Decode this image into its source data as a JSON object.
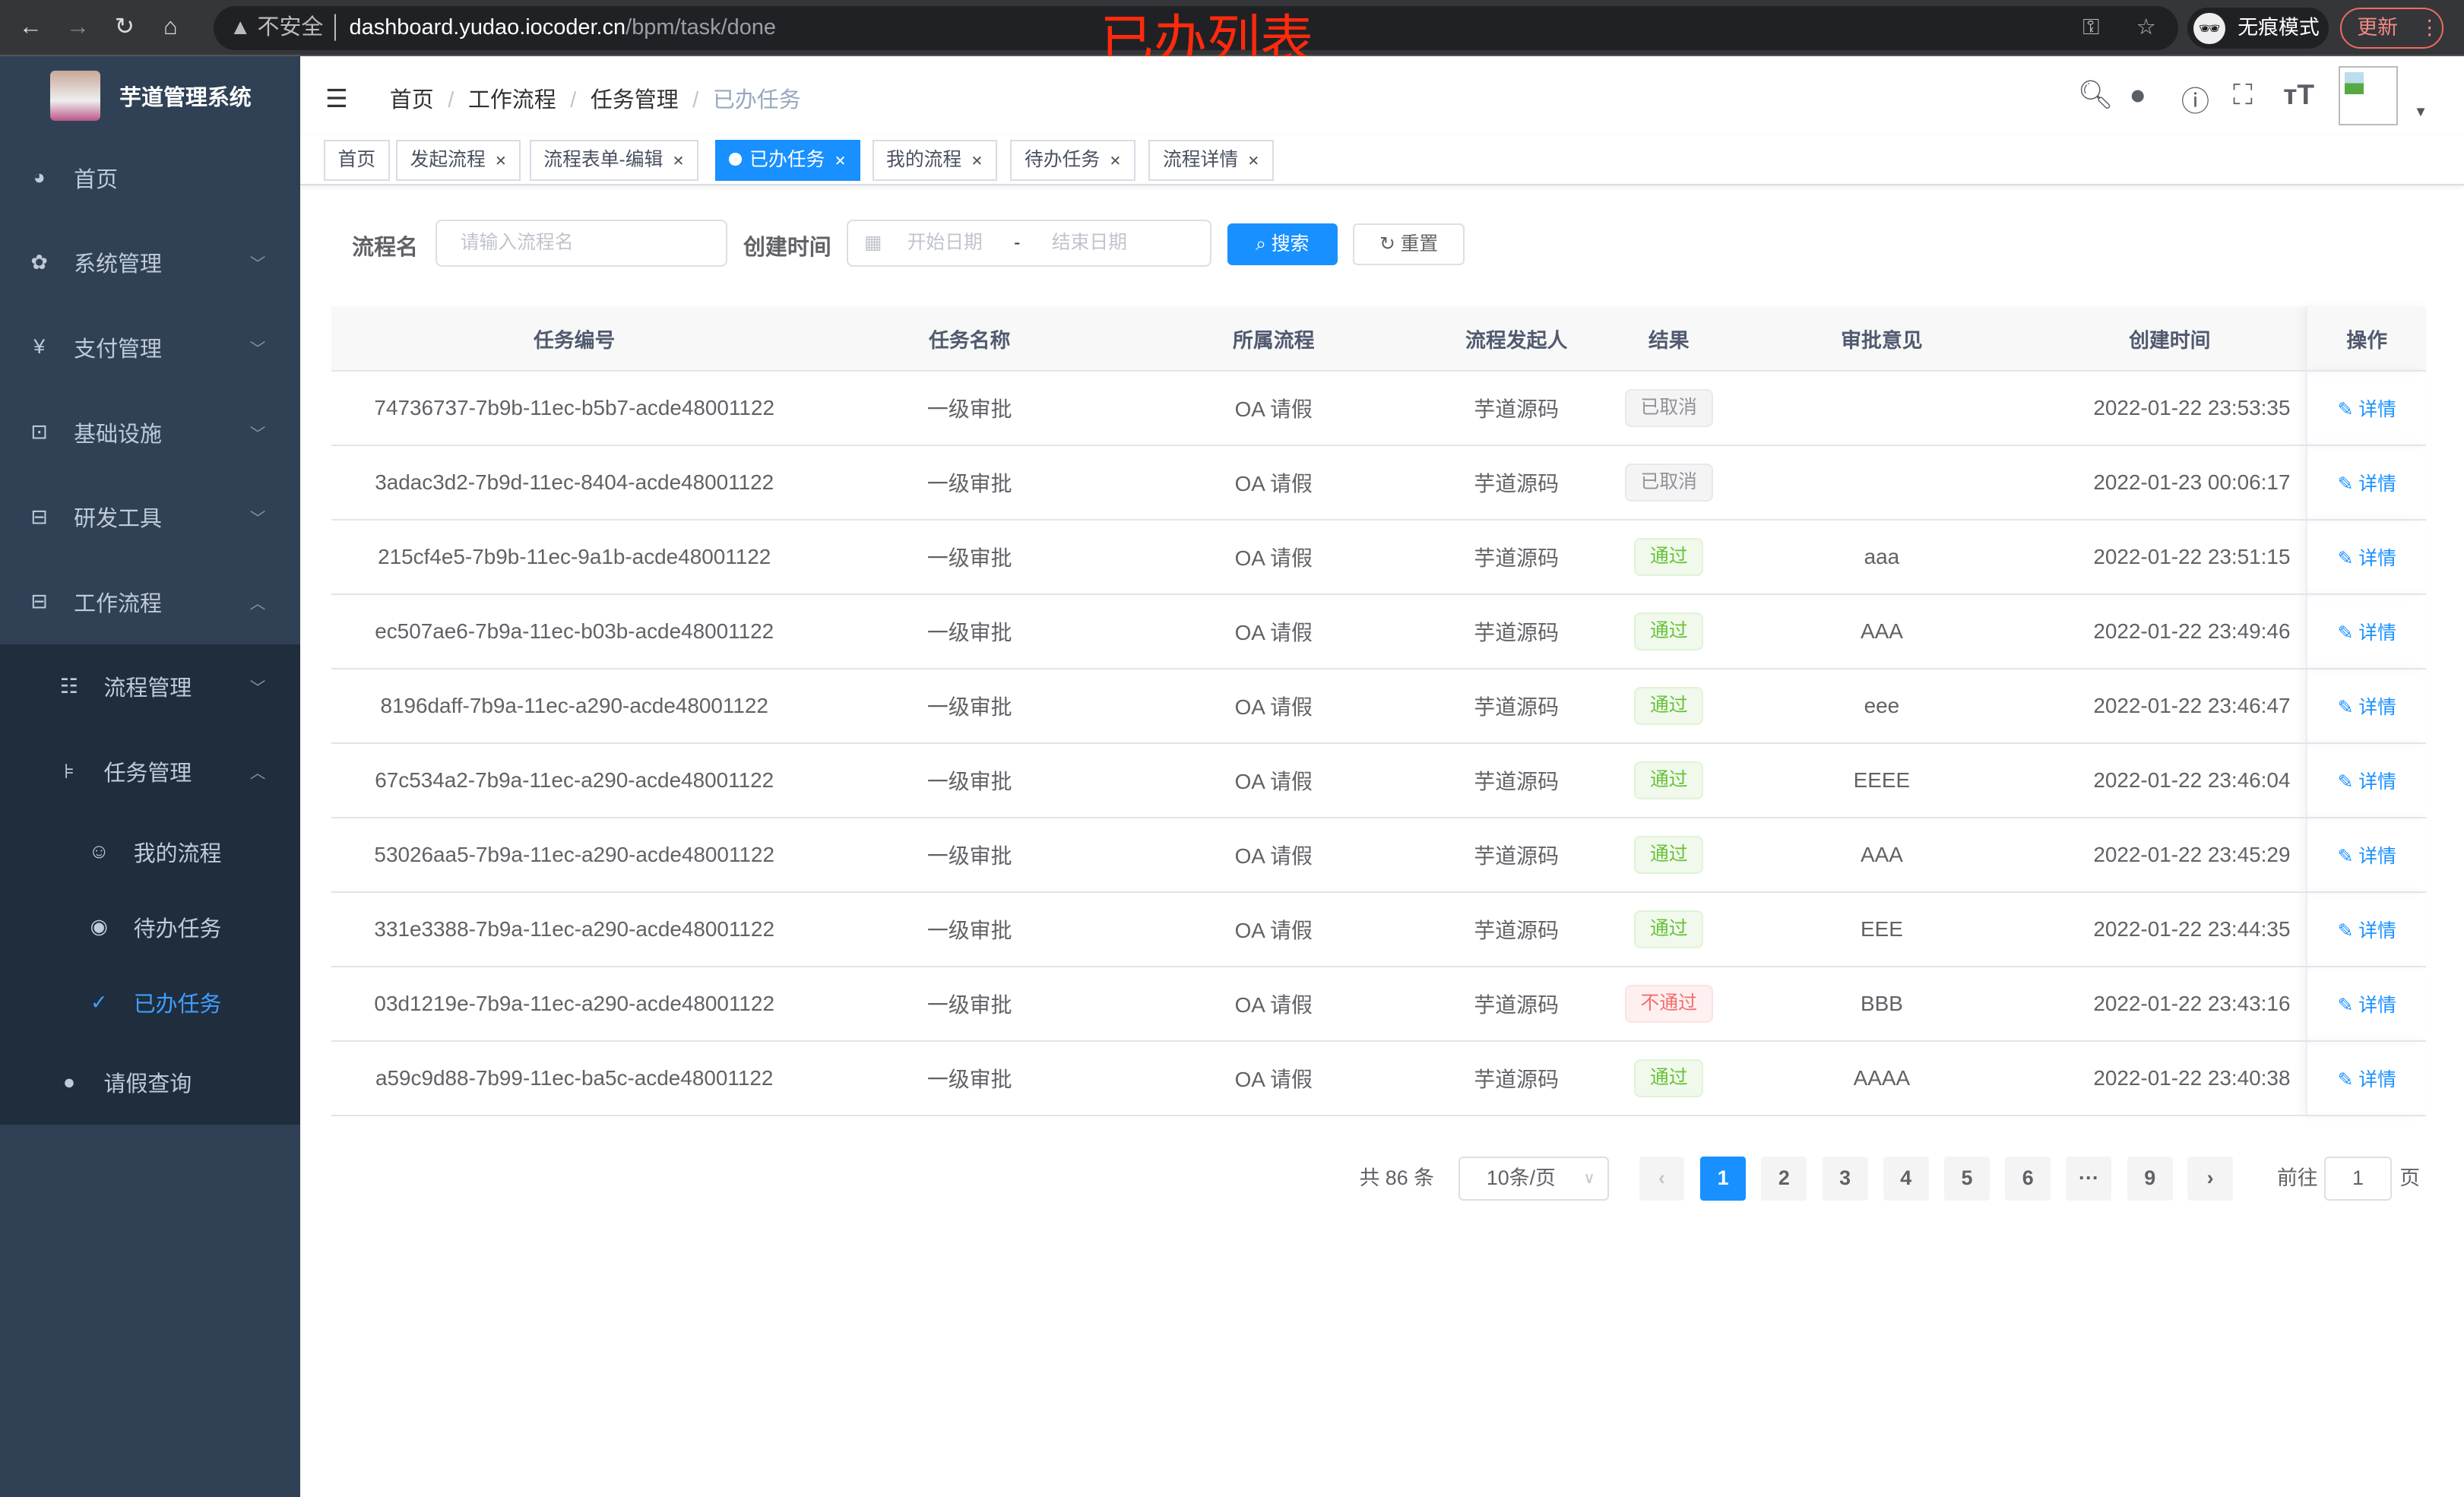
{
  "browser": {
    "insecure": "不安全",
    "host": "dashboard.yudao.iocoder.cn",
    "path": "/bpm/task/done",
    "incognito": "无痕模式",
    "update": "更新",
    "annotation": "已办列表"
  },
  "sidebar": {
    "title": "芋道管理系统",
    "items": [
      {
        "label": "首页",
        "icon": "dashboard-icon"
      },
      {
        "label": "系统管理",
        "icon": "gear-icon"
      },
      {
        "label": "支付管理",
        "icon": "yen-icon"
      },
      {
        "label": "基础设施",
        "icon": "monitor-icon"
      },
      {
        "label": "研发工具",
        "icon": "toolbox-icon"
      },
      {
        "label": "工作流程",
        "icon": "toolbox-icon"
      }
    ],
    "sub": [
      {
        "label": "流程管理",
        "icon": "list-icon"
      },
      {
        "label": "任务管理",
        "icon": "tree-icon"
      }
    ],
    "sub2": [
      {
        "label": "我的流程",
        "icon": "chat-icon"
      },
      {
        "label": "待办任务",
        "icon": "eye-icon"
      },
      {
        "label": "已办任务",
        "icon": "check-icon"
      }
    ],
    "leave": {
      "label": "请假查询",
      "icon": "user-icon"
    }
  },
  "breadcrumb": [
    "首页",
    "工作流程",
    "任务管理",
    "已办任务"
  ],
  "tags": [
    "首页",
    "发起流程",
    "流程表单-编辑",
    "已办任务",
    "我的流程",
    "待办任务",
    "流程详情"
  ],
  "filters": {
    "name_label": "流程名",
    "name_placeholder": "请输入流程名",
    "time_label": "创建时间",
    "start_placeholder": "开始日期",
    "sep": "-",
    "end_placeholder": "结束日期",
    "search": "搜索",
    "reset": "重置"
  },
  "table": {
    "columns": [
      "任务编号",
      "任务名称",
      "所属流程",
      "流程发起人",
      "结果",
      "审批意见",
      "创建时间",
      "操作"
    ],
    "action": "详情",
    "rows": [
      [
        "74736737-7b9b-11ec-b5b7-acde48001122",
        "一级审批",
        "OA 请假",
        "芋道源码",
        "已取消",
        "",
        "2022-01-22 23:53:35"
      ],
      [
        "3adac3d2-7b9d-11ec-8404-acde48001122",
        "一级审批",
        "OA 请假",
        "芋道源码",
        "已取消",
        "",
        "2022-01-23 00:06:17"
      ],
      [
        "215cf4e5-7b9b-11ec-9a1b-acde48001122",
        "一级审批",
        "OA 请假",
        "芋道源码",
        "通过",
        "aaa",
        "2022-01-22 23:51:15"
      ],
      [
        "ec507ae6-7b9a-11ec-b03b-acde48001122",
        "一级审批",
        "OA 请假",
        "芋道源码",
        "通过",
        "AAA",
        "2022-01-22 23:49:46"
      ],
      [
        "8196daff-7b9a-11ec-a290-acde48001122",
        "一级审批",
        "OA 请假",
        "芋道源码",
        "通过",
        "eee",
        "2022-01-22 23:46:47"
      ],
      [
        "67c534a2-7b9a-11ec-a290-acde48001122",
        "一级审批",
        "OA 请假",
        "芋道源码",
        "通过",
        "EEEE",
        "2022-01-22 23:46:04"
      ],
      [
        "53026aa5-7b9a-11ec-a290-acde48001122",
        "一级审批",
        "OA 请假",
        "芋道源码",
        "通过",
        "AAA",
        "2022-01-22 23:45:29"
      ],
      [
        "331e3388-7b9a-11ec-a290-acde48001122",
        "一级审批",
        "OA 请假",
        "芋道源码",
        "通过",
        "EEE",
        "2022-01-22 23:44:35"
      ],
      [
        "03d1219e-7b9a-11ec-a290-acde48001122",
        "一级审批",
        "OA 请假",
        "芋道源码",
        "不通过",
        "BBB",
        "2022-01-22 23:43:16"
      ],
      [
        "a59c9d88-7b99-11ec-ba5c-acde48001122",
        "一级审批",
        "OA 请假",
        "芋道源码",
        "通过",
        "AAAA",
        "2022-01-22 23:40:38"
      ]
    ]
  },
  "pagination": {
    "total": "共 86 条",
    "size": "10条/页",
    "pages": [
      "1",
      "2",
      "3",
      "4",
      "5",
      "6",
      "···",
      "9"
    ],
    "current": "1",
    "goto": "前往",
    "goto_value": "1",
    "page_unit": "页"
  },
  "colors": {
    "sidebar": "#304156",
    "primary": "#1890ff",
    "pass": "#67c23a",
    "reject": "#f56c6c"
  }
}
